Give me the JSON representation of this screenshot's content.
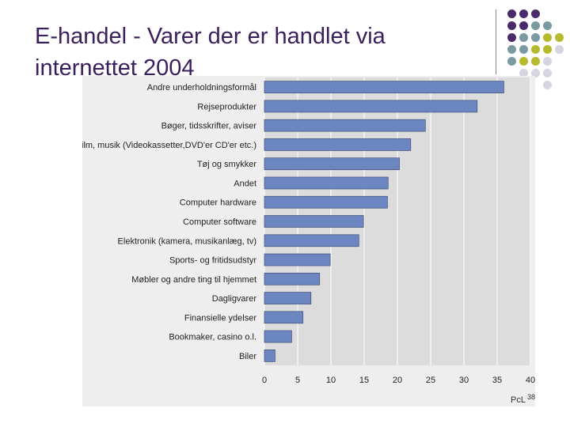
{
  "slide": {
    "title_line1": "E-handel - Varer der er handlet via",
    "title_line2": "internettet 2004",
    "source": "PcL",
    "page_number": "38"
  },
  "colors": {
    "title": "#3b1f5c",
    "bar": "#6b86c0",
    "bar_outline": "#3f4f7a",
    "plot_bg": "#dcdcdc",
    "panel_bg": "#eeeeee",
    "deco_purple": "#4b2a6b",
    "deco_teal": "#7a9aa2",
    "deco_olive": "#b6bb2e",
    "deco_lavender": "#d6d4e0"
  },
  "chart_data": {
    "type": "bar",
    "orientation": "horizontal",
    "categories": [
      "Andre underholdningsformål",
      "Rejseprodukter",
      "Bøger, tidsskrifter, aviser",
      "Film, musik (Videokassetter,DVD'er CD'er etc.)",
      "Tøj og smykker",
      "Andet",
      "Computer hardware",
      "Computer software",
      "Elektronik (kamera, musikanlæg, tv)",
      "Sports- og fritidsudstyr",
      "Møbler og andre ting til hjemmet",
      "Dagligvarer",
      "Finansielle ydelser",
      "Bookmaker, casino o.l.",
      "Biler"
    ],
    "values": [
      36,
      32,
      24.2,
      22,
      20.3,
      18.6,
      18.5,
      14.9,
      14.2,
      9.9,
      8.3,
      7,
      5.8,
      4.1,
      1.6
    ],
    "xlim": [
      0,
      40
    ],
    "xticks": [
      0,
      5,
      10,
      15,
      20,
      25,
      30,
      35,
      40
    ],
    "title": "",
    "xlabel": "",
    "ylabel": "",
    "grid": "vertical"
  }
}
